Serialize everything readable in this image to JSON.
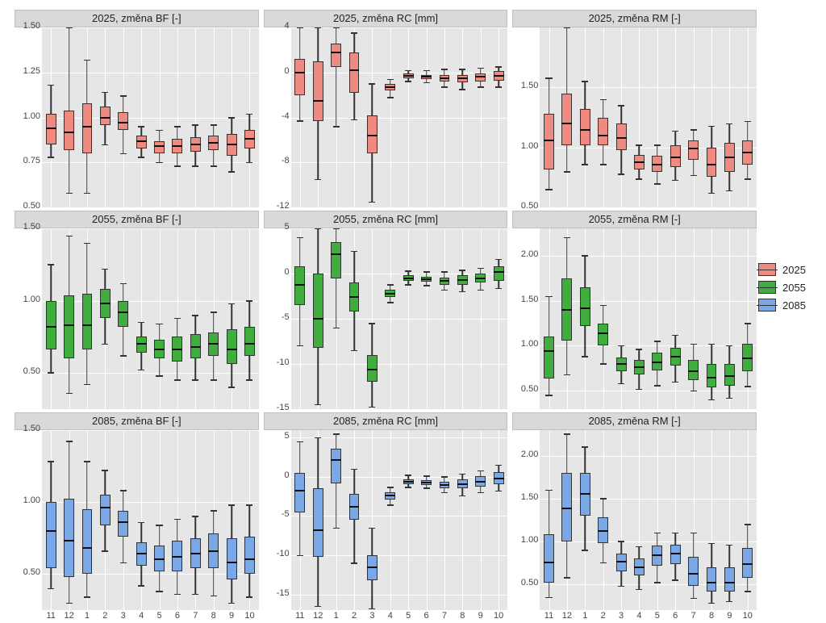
{
  "legend": [
    {
      "label": "2025",
      "color": "#ef8a80"
    },
    {
      "label": "2055",
      "color": "#3fae3f"
    },
    {
      "label": "2085",
      "color": "#7aa8e6"
    }
  ],
  "categories": [
    "11",
    "12",
    "1",
    "2",
    "3",
    "4",
    "5",
    "6",
    "7",
    "8",
    "9",
    "10"
  ],
  "global": {
    "bg": "#e6e6e6",
    "grid": "#ffffff",
    "strip_bg": "#d9d9d9",
    "text_color": "#333",
    "fontsize": 13,
    "box_border": "#333"
  },
  "panels": [
    {
      "title": "2025, změna BF [-]",
      "color": "#ef8a80",
      "ymin": 0.5,
      "ymax": 1.5,
      "yticks": [
        0.5,
        0.75,
        1.0,
        1.25,
        1.5
      ],
      "data": [
        {
          "lw": 0.78,
          "q1": 0.85,
          "med": 0.94,
          "q3": 1.02,
          "uw": 1.18
        },
        {
          "lw": 0.58,
          "q1": 0.82,
          "med": 0.92,
          "q3": 1.04,
          "uw": 1.5
        },
        {
          "lw": 0.58,
          "q1": 0.8,
          "med": 0.95,
          "q3": 1.08,
          "uw": 1.32
        },
        {
          "lw": 0.85,
          "q1": 0.96,
          "med": 1.0,
          "q3": 1.06,
          "uw": 1.14
        },
        {
          "lw": 0.8,
          "q1": 0.93,
          "med": 0.97,
          "q3": 1.03,
          "uw": 1.12
        },
        {
          "lw": 0.78,
          "q1": 0.83,
          "med": 0.87,
          "q3": 0.9,
          "uw": 0.95
        },
        {
          "lw": 0.75,
          "q1": 0.8,
          "med": 0.84,
          "q3": 0.87,
          "uw": 0.93
        },
        {
          "lw": 0.73,
          "q1": 0.8,
          "med": 0.84,
          "q3": 0.88,
          "uw": 0.95
        },
        {
          "lw": 0.73,
          "q1": 0.81,
          "med": 0.85,
          "q3": 0.89,
          "uw": 0.96
        },
        {
          "lw": 0.73,
          "q1": 0.82,
          "med": 0.86,
          "q3": 0.9,
          "uw": 0.96
        },
        {
          "lw": 0.7,
          "q1": 0.79,
          "med": 0.85,
          "q3": 0.91,
          "uw": 1.0
        },
        {
          "lw": 0.75,
          "q1": 0.83,
          "med": 0.88,
          "q3": 0.93,
          "uw": 1.02
        }
      ]
    },
    {
      "title": "2025, změna RC [mm]",
      "color": "#ef8a80",
      "ymin": -12,
      "ymax": 4,
      "yticks": [
        -12,
        -8,
        -4,
        0,
        4
      ],
      "data": [
        {
          "lw": -4.3,
          "q1": -2.0,
          "med": 0.0,
          "q3": 1.2,
          "uw": 4.0
        },
        {
          "lw": -9.5,
          "q1": -4.3,
          "med": -2.5,
          "q3": 1.0,
          "uw": 4.0
        },
        {
          "lw": -4.8,
          "q1": 0.5,
          "med": 1.8,
          "q3": 2.6,
          "uw": 4.0
        },
        {
          "lw": -4.2,
          "q1": -1.8,
          "med": 0.2,
          "q3": 1.8,
          "uw": 3.5
        },
        {
          "lw": -11.5,
          "q1": -7.2,
          "med": -5.6,
          "q3": -3.8,
          "uw": -1.0
        },
        {
          "lw": -2.2,
          "q1": -1.6,
          "med": -1.3,
          "q3": -1.0,
          "uw": -0.6
        },
        {
          "lw": -0.8,
          "q1": -0.5,
          "med": -0.3,
          "q3": -0.1,
          "uw": 0.2
        },
        {
          "lw": -0.9,
          "q1": -0.6,
          "med": -0.4,
          "q3": -0.2,
          "uw": 0.2
        },
        {
          "lw": -1.3,
          "q1": -0.8,
          "med": -0.5,
          "q3": -0.2,
          "uw": 0.3
        },
        {
          "lw": -1.5,
          "q1": -0.9,
          "med": -0.5,
          "q3": -0.2,
          "uw": 0.3
        },
        {
          "lw": -1.3,
          "q1": -0.8,
          "med": -0.4,
          "q3": -0.1,
          "uw": 0.4
        },
        {
          "lw": -1.3,
          "q1": -0.7,
          "med": -0.3,
          "q3": 0.1,
          "uw": 0.5
        }
      ]
    },
    {
      "title": "2025, změna RM [-]",
      "color": "#ef8a80",
      "ymin": 0.5,
      "ymax": 2.0,
      "yticks": [
        0.5,
        1.0,
        1.5
      ],
      "data": [
        {
          "lw": 0.65,
          "q1": 0.82,
          "med": 1.06,
          "q3": 1.28,
          "uw": 1.58
        },
        {
          "lw": 0.8,
          "q1": 1.02,
          "med": 1.2,
          "q3": 1.45,
          "uw": 2.0
        },
        {
          "lw": 0.86,
          "q1": 1.02,
          "med": 1.15,
          "q3": 1.32,
          "uw": 1.55
        },
        {
          "lw": 0.86,
          "q1": 1.02,
          "med": 1.1,
          "q3": 1.25,
          "uw": 1.4
        },
        {
          "lw": 0.78,
          "q1": 0.98,
          "med": 1.08,
          "q3": 1.2,
          "uw": 1.35
        },
        {
          "lw": 0.74,
          "q1": 0.82,
          "med": 0.88,
          "q3": 0.94,
          "uw": 1.02
        },
        {
          "lw": 0.7,
          "q1": 0.8,
          "med": 0.86,
          "q3": 0.93,
          "uw": 1.02
        },
        {
          "lw": 0.73,
          "q1": 0.84,
          "med": 0.92,
          "q3": 1.02,
          "uw": 1.14
        },
        {
          "lw": 0.77,
          "q1": 0.9,
          "med": 0.99,
          "q3": 1.06,
          "uw": 1.15
        },
        {
          "lw": 0.62,
          "q1": 0.76,
          "med": 0.86,
          "q3": 1.0,
          "uw": 1.18
        },
        {
          "lw": 0.64,
          "q1": 0.8,
          "med": 0.92,
          "q3": 1.04,
          "uw": 1.2
        },
        {
          "lw": 0.74,
          "q1": 0.86,
          "med": 0.96,
          "q3": 1.06,
          "uw": 1.22
        }
      ]
    },
    {
      "title": "2055, změna BF [-]",
      "color": "#3fae3f",
      "ymin": 0.25,
      "ymax": 1.5,
      "yticks": [
        0.5,
        1.0,
        1.5
      ],
      "data": [
        {
          "lw": 0.5,
          "q1": 0.66,
          "med": 0.82,
          "q3": 1.0,
          "uw": 1.25
        },
        {
          "lw": 0.36,
          "q1": 0.6,
          "med": 0.83,
          "q3": 1.04,
          "uw": 1.45
        },
        {
          "lw": 0.42,
          "q1": 0.66,
          "med": 0.83,
          "q3": 1.05,
          "uw": 1.4
        },
        {
          "lw": 0.7,
          "q1": 0.88,
          "med": 0.98,
          "q3": 1.08,
          "uw": 1.22
        },
        {
          "lw": 0.62,
          "q1": 0.82,
          "med": 0.92,
          "q3": 1.0,
          "uw": 1.12
        },
        {
          "lw": 0.52,
          "q1": 0.64,
          "med": 0.7,
          "q3": 0.75,
          "uw": 0.85
        },
        {
          "lw": 0.48,
          "q1": 0.6,
          "med": 0.66,
          "q3": 0.73,
          "uw": 0.84
        },
        {
          "lw": 0.45,
          "q1": 0.58,
          "med": 0.66,
          "q3": 0.75,
          "uw": 0.88
        },
        {
          "lw": 0.45,
          "q1": 0.6,
          "med": 0.68,
          "q3": 0.77,
          "uw": 0.9
        },
        {
          "lw": 0.45,
          "q1": 0.62,
          "med": 0.7,
          "q3": 0.78,
          "uw": 0.92
        },
        {
          "lw": 0.4,
          "q1": 0.56,
          "med": 0.66,
          "q3": 0.8,
          "uw": 0.98
        },
        {
          "lw": 0.45,
          "q1": 0.62,
          "med": 0.7,
          "q3": 0.82,
          "uw": 1.0
        }
      ]
    },
    {
      "title": "2055, změna RC [mm]",
      "color": "#3fae3f",
      "ymin": -15,
      "ymax": 5,
      "yticks": [
        -15,
        -10,
        -5,
        0,
        5
      ],
      "data": [
        {
          "lw": -8.0,
          "q1": -3.5,
          "med": -1.2,
          "q3": 0.8,
          "uw": 4.0
        },
        {
          "lw": -14.5,
          "q1": -8.2,
          "med": -5.0,
          "q3": 0.0,
          "uw": 5.0
        },
        {
          "lw": -6.0,
          "q1": -0.5,
          "med": 2.2,
          "q3": 3.5,
          "uw": 5.0
        },
        {
          "lw": -8.5,
          "q1": -4.2,
          "med": -2.6,
          "q3": -1.0,
          "uw": 2.5
        },
        {
          "lw": -14.8,
          "q1": -12.0,
          "med": -10.6,
          "q3": -9.0,
          "uw": -5.5
        },
        {
          "lw": -3.2,
          "q1": -2.6,
          "med": -2.2,
          "q3": -1.8,
          "uw": -1.2
        },
        {
          "lw": -1.2,
          "q1": -0.8,
          "med": -0.5,
          "q3": -0.2,
          "uw": 0.3
        },
        {
          "lw": -1.3,
          "q1": -0.9,
          "med": -0.6,
          "q3": -0.3,
          "uw": 0.2
        },
        {
          "lw": -1.8,
          "q1": -1.2,
          "med": -0.8,
          "q3": -0.4,
          "uw": 0.2
        },
        {
          "lw": -2.0,
          "q1": -1.2,
          "med": -0.7,
          "q3": -0.2,
          "uw": 0.4
        },
        {
          "lw": -1.8,
          "q1": -1.0,
          "med": -0.5,
          "q3": 0.0,
          "uw": 0.6
        },
        {
          "lw": -1.6,
          "q1": -0.8,
          "med": 0.2,
          "q3": 0.8,
          "uw": 1.6
        }
      ]
    },
    {
      "title": "2055, změna RM [-]",
      "color": "#3fae3f",
      "ymin": 0.3,
      "ymax": 2.3,
      "yticks": [
        0.5,
        1.0,
        1.5,
        2.0
      ],
      "data": [
        {
          "lw": 0.45,
          "q1": 0.64,
          "med": 0.94,
          "q3": 1.1,
          "uw": 1.55
        },
        {
          "lw": 0.68,
          "q1": 1.06,
          "med": 1.4,
          "q3": 1.75,
          "uw": 2.2
        },
        {
          "lw": 0.88,
          "q1": 1.22,
          "med": 1.42,
          "q3": 1.65,
          "uw": 2.0
        },
        {
          "lw": 0.8,
          "q1": 1.0,
          "med": 1.14,
          "q3": 1.25,
          "uw": 1.45
        },
        {
          "lw": 0.58,
          "q1": 0.72,
          "med": 0.8,
          "q3": 0.87,
          "uw": 1.0
        },
        {
          "lw": 0.52,
          "q1": 0.68,
          "med": 0.76,
          "q3": 0.84,
          "uw": 0.96
        },
        {
          "lw": 0.56,
          "q1": 0.73,
          "med": 0.82,
          "q3": 0.92,
          "uw": 1.05
        },
        {
          "lw": 0.6,
          "q1": 0.78,
          "med": 0.88,
          "q3": 0.98,
          "uw": 1.12
        },
        {
          "lw": 0.5,
          "q1": 0.62,
          "med": 0.72,
          "q3": 0.84,
          "uw": 1.02
        },
        {
          "lw": 0.4,
          "q1": 0.54,
          "med": 0.65,
          "q3": 0.8,
          "uw": 1.02
        },
        {
          "lw": 0.42,
          "q1": 0.56,
          "med": 0.66,
          "q3": 0.8,
          "uw": 1.0
        },
        {
          "lw": 0.55,
          "q1": 0.72,
          "med": 0.86,
          "q3": 1.02,
          "uw": 1.25
        }
      ]
    },
    {
      "title": "2085, změna BF [-]",
      "color": "#7aa8e6",
      "ymin": 0.25,
      "ymax": 1.5,
      "yticks": [
        0.5,
        1.0,
        1.5
      ],
      "data": [
        {
          "lw": 0.4,
          "q1": 0.54,
          "med": 0.8,
          "q3": 1.0,
          "uw": 1.28
        },
        {
          "lw": 0.3,
          "q1": 0.48,
          "med": 0.73,
          "q3": 1.02,
          "uw": 1.42
        },
        {
          "lw": 0.34,
          "q1": 0.5,
          "med": 0.68,
          "q3": 0.95,
          "uw": 1.28
        },
        {
          "lw": 0.66,
          "q1": 0.84,
          "med": 0.96,
          "q3": 1.05,
          "uw": 1.22
        },
        {
          "lw": 0.58,
          "q1": 0.76,
          "med": 0.86,
          "q3": 0.94,
          "uw": 1.08
        },
        {
          "lw": 0.42,
          "q1": 0.56,
          "med": 0.64,
          "q3": 0.72,
          "uw": 0.86
        },
        {
          "lw": 0.38,
          "q1": 0.52,
          "med": 0.6,
          "q3": 0.7,
          "uw": 0.84
        },
        {
          "lw": 0.36,
          "q1": 0.52,
          "med": 0.62,
          "q3": 0.73,
          "uw": 0.88
        },
        {
          "lw": 0.36,
          "q1": 0.54,
          "med": 0.64,
          "q3": 0.75,
          "uw": 0.9
        },
        {
          "lw": 0.35,
          "q1": 0.54,
          "med": 0.66,
          "q3": 0.78,
          "uw": 0.94
        },
        {
          "lw": 0.3,
          "q1": 0.46,
          "med": 0.58,
          "q3": 0.75,
          "uw": 0.98
        },
        {
          "lw": 0.34,
          "q1": 0.5,
          "med": 0.6,
          "q3": 0.76,
          "uw": 0.98
        }
      ]
    },
    {
      "title": "2085, změna RC [mm]",
      "color": "#7aa8e6",
      "ymin": -17,
      "ymax": 6,
      "yticks": [
        -15,
        -10,
        -5,
        0,
        5
      ],
      "data": [
        {
          "lw": -10.0,
          "q1": -4.5,
          "med": -1.8,
          "q3": 0.5,
          "uw": 4.5
        },
        {
          "lw": -16.5,
          "q1": -10.2,
          "med": -6.8,
          "q3": -1.5,
          "uw": 5.0
        },
        {
          "lw": -6.5,
          "q1": -0.8,
          "med": 2.2,
          "q3": 3.6,
          "uw": 5.5
        },
        {
          "lw": -11.0,
          "q1": -5.5,
          "med": -3.8,
          "q3": -2.2,
          "uw": 1.0
        },
        {
          "lw": -16.8,
          "q1": -13.2,
          "med": -11.5,
          "q3": -10.0,
          "uw": -6.5
        },
        {
          "lw": -3.6,
          "q1": -2.9,
          "med": -2.4,
          "q3": -2.0,
          "uw": -1.3
        },
        {
          "lw": -1.3,
          "q1": -0.9,
          "med": -0.6,
          "q3": -0.3,
          "uw": 0.2
        },
        {
          "lw": -1.4,
          "q1": -1.0,
          "med": -0.7,
          "q3": -0.4,
          "uw": 0.1
        },
        {
          "lw": -2.0,
          "q1": -1.4,
          "med": -1.0,
          "q3": -0.6,
          "uw": 0.0
        },
        {
          "lw": -2.4,
          "q1": -1.5,
          "med": -0.9,
          "q3": -0.3,
          "uw": 0.4
        },
        {
          "lw": -2.0,
          "q1": -1.2,
          "med": -0.6,
          "q3": 0.1,
          "uw": 0.8
        },
        {
          "lw": -1.8,
          "q1": -0.9,
          "med": -0.2,
          "q3": 0.6,
          "uw": 1.5
        }
      ]
    },
    {
      "title": "2085, změna RM [-]",
      "color": "#7aa8e6",
      "ymin": 0.2,
      "ymax": 2.3,
      "yticks": [
        0.5,
        1.0,
        1.5,
        2.0
      ],
      "data": [
        {
          "lw": 0.35,
          "q1": 0.52,
          "med": 0.75,
          "q3": 1.08,
          "uw": 1.6
        },
        {
          "lw": 0.58,
          "q1": 1.0,
          "med": 1.38,
          "q3": 1.8,
          "uw": 2.25
        },
        {
          "lw": 0.9,
          "q1": 1.3,
          "med": 1.55,
          "q3": 1.8,
          "uw": 2.1
        },
        {
          "lw": 0.75,
          "q1": 0.98,
          "med": 1.12,
          "q3": 1.28,
          "uw": 1.5
        },
        {
          "lw": 0.48,
          "q1": 0.65,
          "med": 0.76,
          "q3": 0.86,
          "uw": 1.0
        },
        {
          "lw": 0.44,
          "q1": 0.6,
          "med": 0.7,
          "q3": 0.8,
          "uw": 0.94
        },
        {
          "lw": 0.52,
          "q1": 0.72,
          "med": 0.84,
          "q3": 0.95,
          "uw": 1.1
        },
        {
          "lw": 0.55,
          "q1": 0.74,
          "med": 0.86,
          "q3": 0.96,
          "uw": 1.1
        },
        {
          "lw": 0.34,
          "q1": 0.48,
          "med": 0.62,
          "q3": 0.82,
          "uw": 1.1
        },
        {
          "lw": 0.28,
          "q1": 0.42,
          "med": 0.52,
          "q3": 0.7,
          "uw": 0.98
        },
        {
          "lw": 0.3,
          "q1": 0.42,
          "med": 0.52,
          "q3": 0.7,
          "uw": 0.96
        },
        {
          "lw": 0.42,
          "q1": 0.58,
          "med": 0.74,
          "q3": 0.92,
          "uw": 1.2
        }
      ]
    }
  ]
}
